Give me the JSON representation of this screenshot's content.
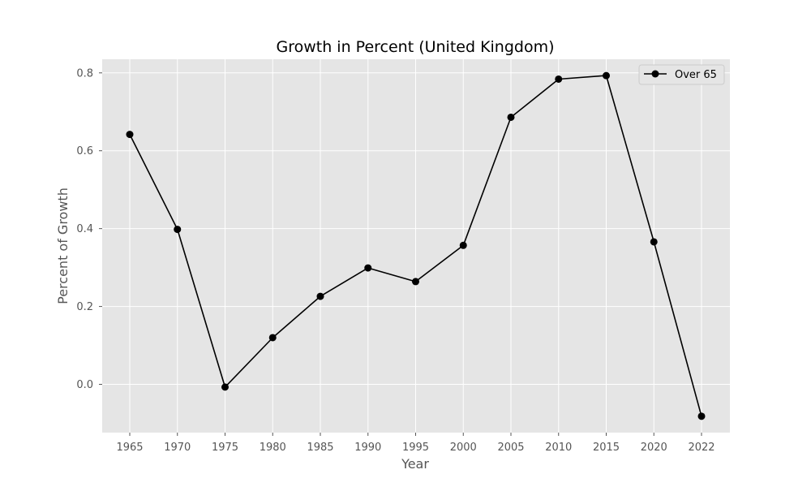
{
  "chart_data": {
    "type": "line",
    "title": "Growth in Percent (United Kingdom)",
    "xlabel": "Year",
    "ylabel": "Percent of Growth",
    "categories": [
      "1965",
      "1970",
      "1975",
      "1980",
      "1985",
      "1990",
      "1995",
      "2000",
      "2005",
      "2010",
      "2015",
      "2020",
      "2022"
    ],
    "series": [
      {
        "name": "Over 65",
        "values": [
          0.642,
          0.398,
          -0.007,
          0.12,
          0.226,
          0.299,
          0.264,
          0.357,
          0.686,
          0.784,
          0.793,
          0.366,
          -0.082
        ],
        "color": "#000000",
        "marker": "circle"
      }
    ],
    "yticks": [
      "0.0",
      "0.2",
      "0.4",
      "0.6",
      "0.8"
    ],
    "ylim": [
      -0.124,
      0.835
    ],
    "grid": true,
    "legend": "top-right",
    "plot_background": "#e5e5e5",
    "grid_color": "#ffffff"
  }
}
